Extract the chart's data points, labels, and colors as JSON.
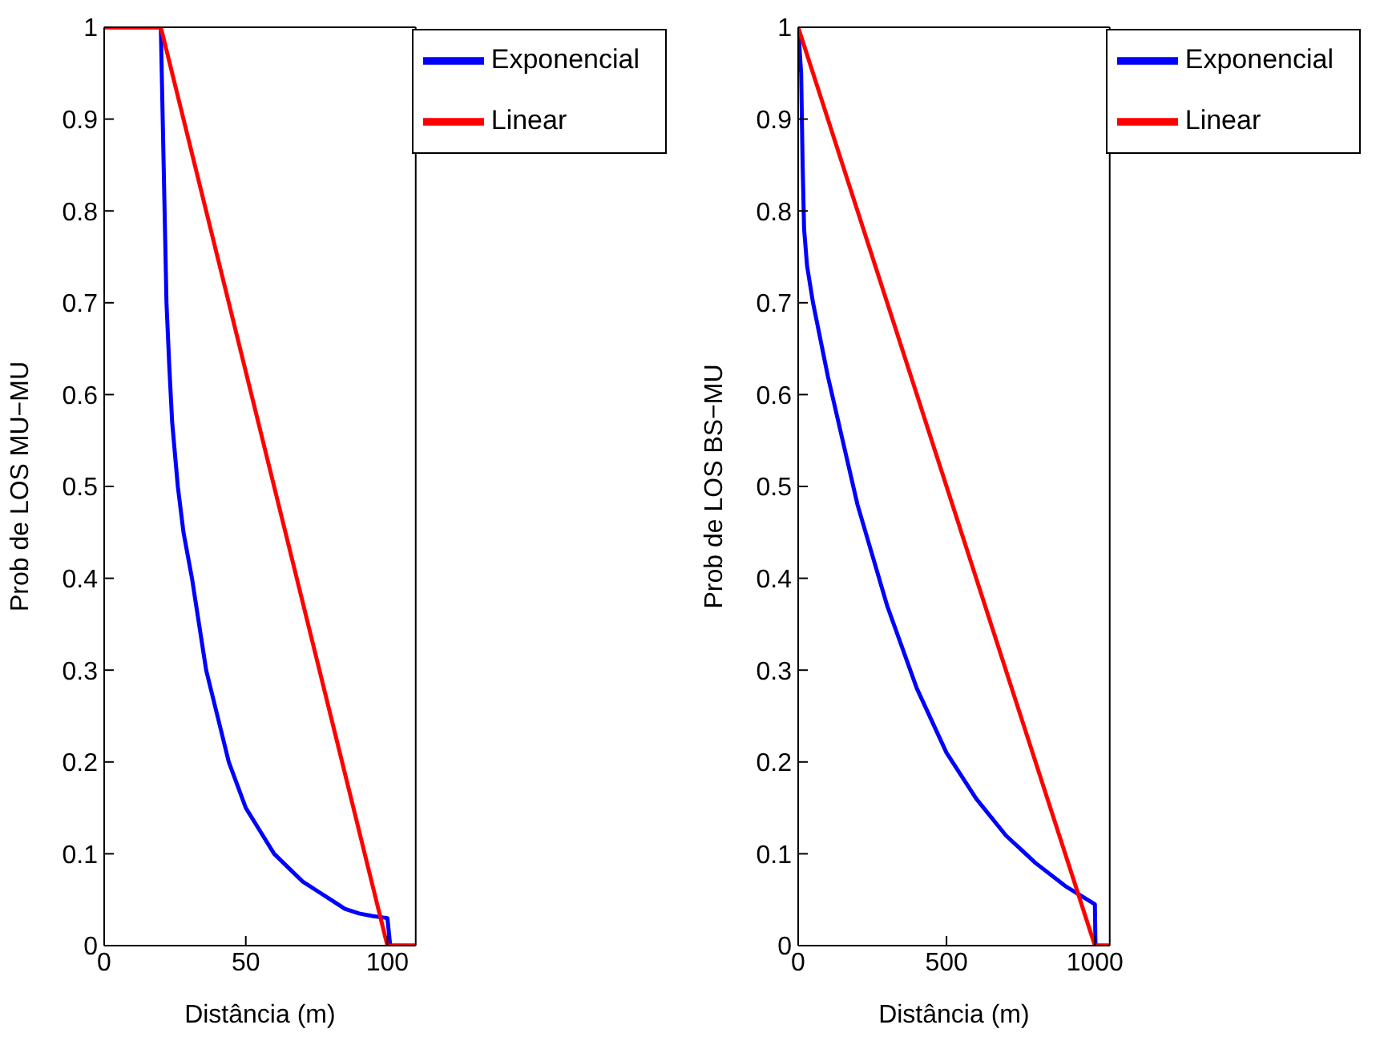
{
  "chart_data": [
    {
      "type": "line",
      "xlabel": "Distância (m)",
      "ylabel": "Prob de LOS MU−MU",
      "xlim": [
        0,
        110
      ],
      "xticks": [
        0,
        50,
        100
      ],
      "ylim": [
        0,
        1
      ],
      "yticks": [
        0,
        0.1,
        0.2,
        0.3,
        0.4,
        0.5,
        0.6,
        0.7,
        0.8,
        0.9,
        1
      ],
      "legend": "top right",
      "marker": "none",
      "line_style": "solid",
      "series": [
        {
          "name": "Exponencial",
          "color": "#0000ff",
          "x": [
            0,
            20,
            21,
            22,
            23,
            24,
            26,
            28,
            31,
            34,
            36,
            40,
            44,
            50,
            55,
            60,
            65,
            70,
            75,
            80,
            85,
            90,
            95,
            100,
            101,
            110
          ],
          "values": [
            1,
            1,
            0.85,
            0.7,
            0.63,
            0.57,
            0.5,
            0.45,
            0.4,
            0.34,
            0.3,
            0.25,
            0.2,
            0.15,
            0.125,
            0.1,
            0.085,
            0.07,
            0.06,
            0.05,
            0.04,
            0.035,
            0.032,
            0.03,
            0,
            0
          ]
        },
        {
          "name": "Linear",
          "color": "#ff0000",
          "x": [
            0,
            20,
            100,
            110
          ],
          "values": [
            1,
            1,
            0,
            0
          ]
        }
      ]
    },
    {
      "type": "line",
      "xlabel": "Distância (m)",
      "ylabel": "Prob de LOS BS−MU",
      "xlim": [
        0,
        1050
      ],
      "xticks": [
        0,
        500,
        1000
      ],
      "ylim": [
        0,
        1
      ],
      "yticks": [
        0,
        0.1,
        0.2,
        0.3,
        0.4,
        0.5,
        0.6,
        0.7,
        0.8,
        0.9,
        1
      ],
      "legend": "top right",
      "marker": "none",
      "line_style": "solid",
      "series": [
        {
          "name": "Exponencial",
          "color": "#0000ff",
          "x": [
            0,
            10,
            15,
            20,
            30,
            50,
            100,
            150,
            200,
            300,
            400,
            500,
            600,
            700,
            800,
            900,
            1000,
            1002,
            1050
          ],
          "values": [
            1,
            0.95,
            0.85,
            0.78,
            0.74,
            0.7,
            0.62,
            0.55,
            0.48,
            0.37,
            0.28,
            0.21,
            0.16,
            0.12,
            0.09,
            0.065,
            0.045,
            0,
            0
          ]
        },
        {
          "name": "Linear",
          "color": "#ff0000",
          "x": [
            0,
            1000,
            1050
          ],
          "values": [
            1,
            0,
            0
          ]
        }
      ]
    }
  ]
}
